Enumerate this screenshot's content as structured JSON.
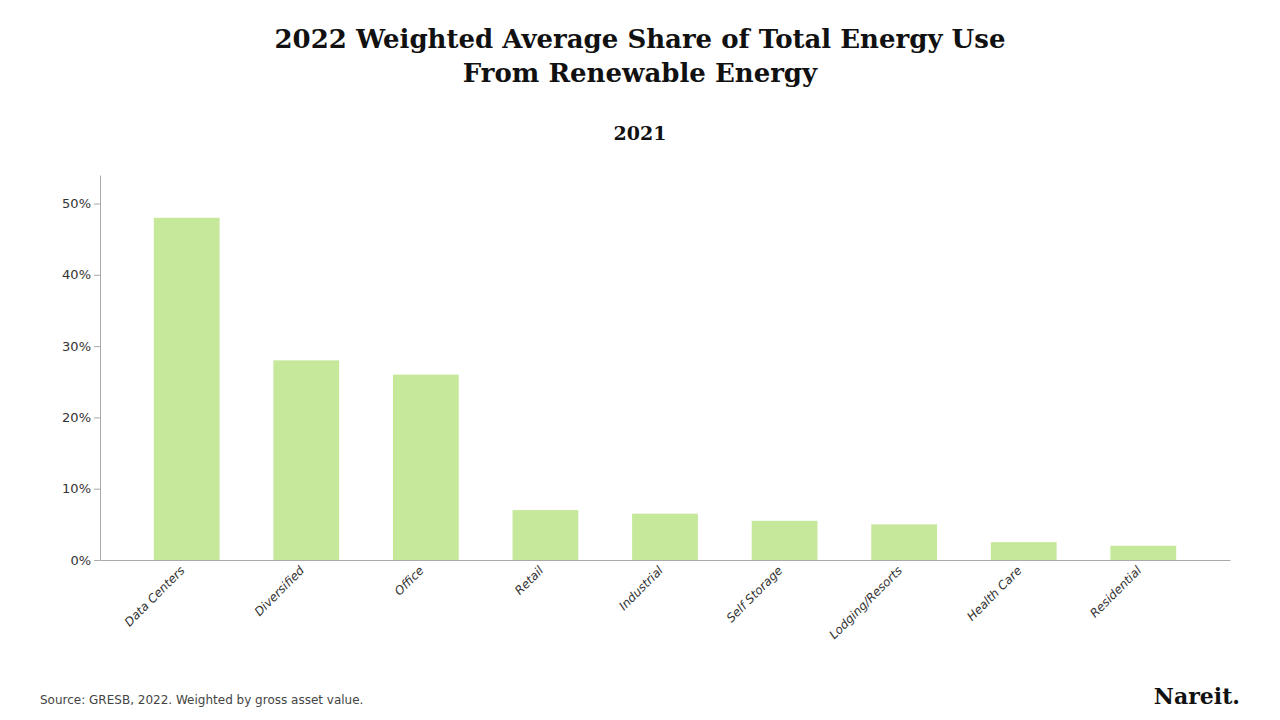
{
  "chart_data": {
    "type": "bar",
    "title": "2022 Weighted Average Share of Total Energy Use\nFrom Renewable Energy",
    "subtitle": "2021",
    "categories": [
      "Data Centers",
      "Diversified",
      "Office",
      "Retail",
      "Industrial",
      "Self Storage",
      "Lodging/Resorts",
      "Health Care",
      "Residential"
    ],
    "values": [
      0.48,
      0.28,
      0.26,
      0.07,
      0.065,
      0.055,
      0.05,
      0.025,
      0.02
    ],
    "color": "#c5e89a",
    "ylim": [
      0,
      0.54
    ],
    "yticks": [
      {
        "value": 0.0,
        "label": "0%"
      },
      {
        "value": 0.1,
        "label": "10%"
      },
      {
        "value": 0.2,
        "label": "20%"
      },
      {
        "value": 0.3,
        "label": "30%"
      },
      {
        "value": 0.4,
        "label": "40%"
      },
      {
        "value": 0.5,
        "label": "50%"
      }
    ],
    "grid": false,
    "annotations": [
      "Source: GRESB, 2022. Weighted by gross asset value.",
      "Nareit."
    ]
  }
}
